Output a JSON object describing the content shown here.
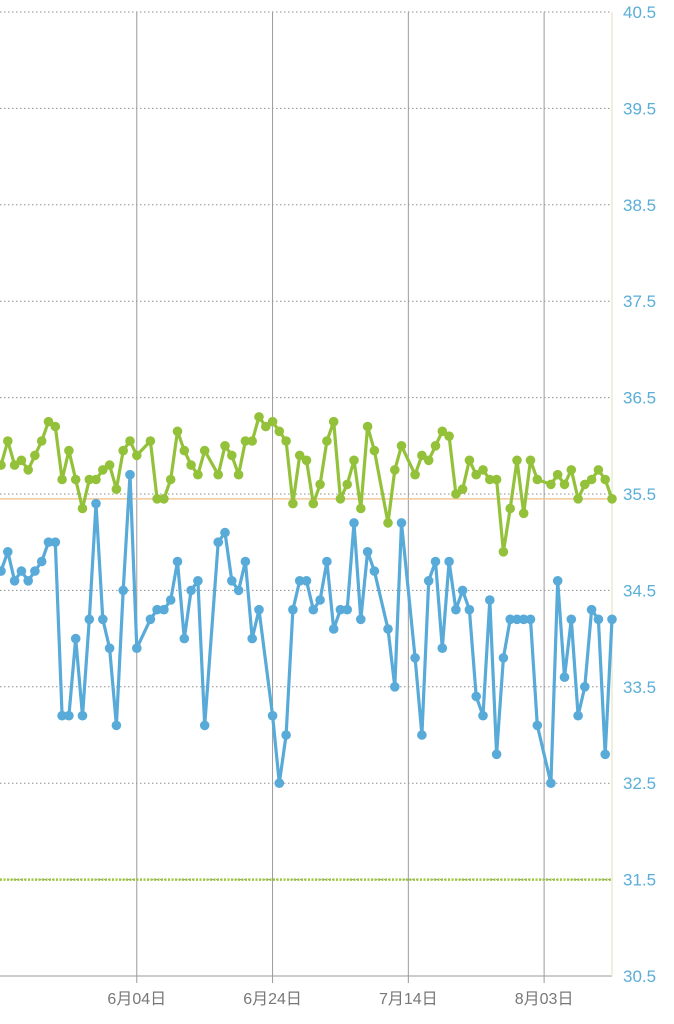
{
  "chart_data": {
    "type": "line",
    "title": "",
    "xlabel": "",
    "ylabel": "",
    "ylim": [
      30.5,
      40.5
    ],
    "y_ticks": [
      "40.5",
      "39.5",
      "38.5",
      "37.5",
      "36.5",
      "35.5",
      "34.5",
      "33.5",
      "32.5",
      "31.5",
      "30.5"
    ],
    "x_ticks": [
      "6月04日",
      "6月24日",
      "7月14日",
      "8月03日"
    ],
    "x_tick_days": [
      24,
      44,
      64,
      84
    ],
    "xlim": [
      4,
      94
    ],
    "reference_lines": [
      {
        "y": 35.45,
        "color": "#f3c89a"
      },
      {
        "y": 31.5,
        "color": "#9bc83c"
      }
    ],
    "colors": {
      "green": "#93c23a",
      "blue": "#58aad8",
      "grid": "#9a9a9a",
      "axis": "#e8eccf"
    },
    "series": [
      {
        "color": "#93c23a",
        "points": [
          [
            4,
            35.8
          ],
          [
            5,
            36.05
          ],
          [
            6,
            35.8
          ],
          [
            7,
            35.85
          ],
          [
            8,
            35.75
          ],
          [
            9,
            35.9
          ],
          [
            10,
            36.05
          ],
          [
            11,
            36.25
          ],
          [
            12,
            36.2
          ],
          [
            13,
            35.65
          ],
          [
            14,
            35.95
          ],
          [
            15,
            35.65
          ],
          [
            16,
            35.35
          ],
          [
            17,
            35.65
          ],
          [
            18,
            35.65
          ],
          [
            19,
            35.75
          ],
          [
            20,
            35.8
          ],
          [
            21,
            35.55
          ],
          [
            22,
            35.95
          ],
          [
            23,
            36.05
          ],
          [
            24,
            35.9
          ],
          [
            26,
            36.05
          ],
          [
            27,
            35.45
          ],
          [
            28,
            35.45
          ],
          [
            29,
            35.65
          ],
          [
            30,
            36.15
          ],
          [
            31,
            35.95
          ],
          [
            32,
            35.8
          ],
          [
            33,
            35.7
          ],
          [
            34,
            35.95
          ],
          [
            36,
            35.7
          ],
          [
            37,
            36.0
          ],
          [
            38,
            35.9
          ],
          [
            39,
            35.7
          ],
          [
            40,
            36.05
          ],
          [
            41,
            36.05
          ],
          [
            42,
            36.3
          ],
          [
            43,
            36.2
          ],
          [
            44,
            36.25
          ],
          [
            45,
            36.15
          ],
          [
            46,
            36.05
          ],
          [
            47,
            35.4
          ],
          [
            48,
            35.9
          ],
          [
            49,
            35.85
          ],
          [
            50,
            35.4
          ],
          [
            51,
            35.6
          ],
          [
            52,
            36.05
          ],
          [
            53,
            36.25
          ],
          [
            54,
            35.45
          ],
          [
            55,
            35.6
          ],
          [
            56,
            35.85
          ],
          [
            57,
            35.35
          ],
          [
            58,
            36.2
          ],
          [
            59,
            35.95
          ],
          [
            61,
            35.2
          ],
          [
            62,
            35.75
          ],
          [
            63,
            36.0
          ],
          [
            65,
            35.7
          ],
          [
            66,
            35.9
          ],
          [
            67,
            35.85
          ],
          [
            68,
            36.0
          ],
          [
            69,
            36.15
          ],
          [
            70,
            36.1
          ],
          [
            71,
            35.5
          ],
          [
            72,
            35.55
          ],
          [
            73,
            35.85
          ],
          [
            74,
            35.7
          ],
          [
            75,
            35.75
          ],
          [
            76,
            35.65
          ],
          [
            77,
            35.65
          ],
          [
            78,
            34.9
          ],
          [
            79,
            35.35
          ],
          [
            80,
            35.85
          ],
          [
            81,
            35.3
          ],
          [
            82,
            35.85
          ],
          [
            83,
            35.65
          ],
          [
            85,
            35.6
          ],
          [
            86,
            35.7
          ],
          [
            87,
            35.6
          ],
          [
            88,
            35.75
          ],
          [
            89,
            35.45
          ],
          [
            90,
            35.6
          ],
          [
            91,
            35.65
          ],
          [
            92,
            35.75
          ],
          [
            93,
            35.65
          ],
          [
            94,
            35.45
          ]
        ]
      },
      {
        "color": "#58aad8",
        "points": [
          [
            4,
            34.7
          ],
          [
            5,
            34.9
          ],
          [
            6,
            34.6
          ],
          [
            7,
            34.7
          ],
          [
            8,
            34.6
          ],
          [
            9,
            34.7
          ],
          [
            10,
            34.8
          ],
          [
            11,
            35.0
          ],
          [
            12,
            35.0
          ],
          [
            13,
            33.2
          ],
          [
            14,
            33.2
          ],
          [
            15,
            34.0
          ],
          [
            16,
            33.2
          ],
          [
            17,
            34.2
          ],
          [
            18,
            35.4
          ],
          [
            19,
            34.2
          ],
          [
            20,
            33.9
          ],
          [
            21,
            33.1
          ],
          [
            22,
            34.5
          ],
          [
            23,
            35.7
          ],
          [
            24,
            33.9
          ],
          [
            26,
            34.2
          ],
          [
            27,
            34.3
          ],
          [
            28,
            34.3
          ],
          [
            29,
            34.4
          ],
          [
            30,
            34.8
          ],
          [
            31,
            34.0
          ],
          [
            32,
            34.5
          ],
          [
            33,
            34.6
          ],
          [
            34,
            33.1
          ],
          [
            36,
            35.0
          ],
          [
            37,
            35.1
          ],
          [
            38,
            34.6
          ],
          [
            39,
            34.5
          ],
          [
            40,
            34.8
          ],
          [
            41,
            34.0
          ],
          [
            42,
            34.3
          ],
          [
            44,
            33.2
          ],
          [
            45,
            32.5
          ],
          [
            46,
            33.0
          ],
          [
            47,
            34.3
          ],
          [
            48,
            34.6
          ],
          [
            49,
            34.6
          ],
          [
            50,
            34.3
          ],
          [
            51,
            34.4
          ],
          [
            52,
            34.8
          ],
          [
            53,
            34.1
          ],
          [
            54,
            34.3
          ],
          [
            55,
            34.3
          ],
          [
            56,
            35.2
          ],
          [
            57,
            34.2
          ],
          [
            58,
            34.9
          ],
          [
            59,
            34.7
          ],
          [
            61,
            34.1
          ],
          [
            62,
            33.5
          ],
          [
            63,
            35.2
          ],
          [
            65,
            33.8
          ],
          [
            66,
            33.0
          ],
          [
            67,
            34.6
          ],
          [
            68,
            34.8
          ],
          [
            69,
            33.9
          ],
          [
            70,
            34.8
          ],
          [
            71,
            34.3
          ],
          [
            72,
            34.5
          ],
          [
            73,
            34.3
          ],
          [
            74,
            33.4
          ],
          [
            75,
            33.2
          ],
          [
            76,
            34.4
          ],
          [
            77,
            32.8
          ],
          [
            78,
            33.8
          ],
          [
            79,
            34.2
          ],
          [
            80,
            34.2
          ],
          [
            81,
            34.2
          ],
          [
            82,
            34.2
          ],
          [
            83,
            33.1
          ],
          [
            85,
            32.5
          ],
          [
            86,
            34.6
          ],
          [
            87,
            33.6
          ],
          [
            88,
            34.2
          ],
          [
            89,
            33.2
          ],
          [
            90,
            33.5
          ],
          [
            91,
            34.3
          ],
          [
            92,
            34.2
          ],
          [
            93,
            32.8
          ],
          [
            94,
            34.2
          ]
        ]
      }
    ]
  }
}
